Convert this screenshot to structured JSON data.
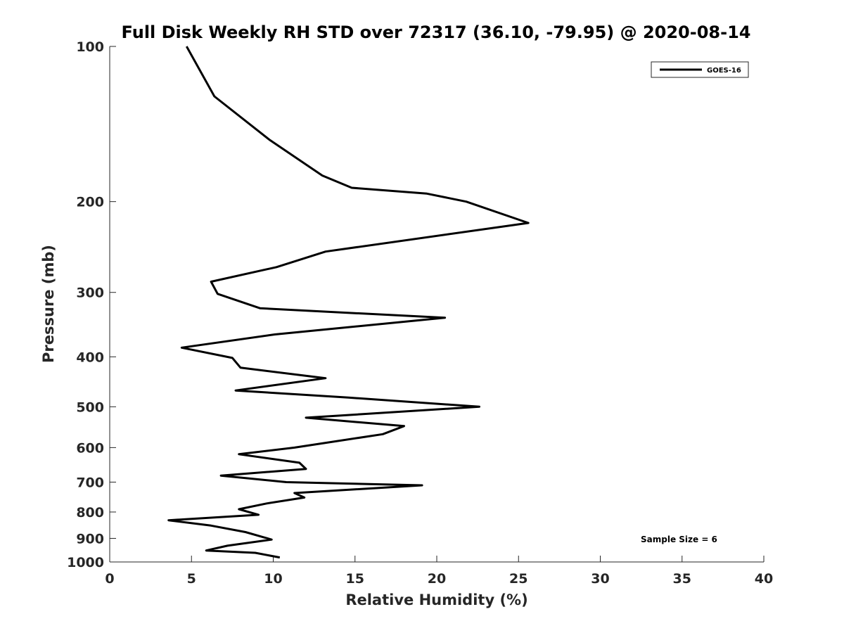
{
  "chart_data": {
    "type": "line",
    "title": "Full Disk Weekly RH STD over 72317 (36.10, -79.95) @ 2020-08-14",
    "xlabel": "Relative Humidity (%)",
    "ylabel": "Pressure (mb)",
    "xlim": [
      0,
      40
    ],
    "ylim": [
      100,
      1000
    ],
    "yscale": "log",
    "y_reversed": true,
    "xticks": [
      0,
      5,
      10,
      15,
      20,
      25,
      30,
      35,
      40
    ],
    "yticks": [
      100,
      200,
      300,
      400,
      500,
      600,
      700,
      800,
      900,
      1000
    ],
    "grid": false,
    "legend": {
      "placement": "top-right",
      "entries": [
        "GOES-16"
      ]
    },
    "annotation": "Sample Size = 6",
    "series": [
      {
        "name": "GOES-16",
        "color": "#000000",
        "points": [
          [
            4.7,
            100
          ],
          [
            6.4,
            125
          ],
          [
            9.8,
            152
          ],
          [
            13.0,
            178
          ],
          [
            14.8,
            188
          ],
          [
            19.4,
            193
          ],
          [
            21.8,
            200
          ],
          [
            25.6,
            220
          ],
          [
            13.2,
            250
          ],
          [
            10.2,
            268
          ],
          [
            6.2,
            286
          ],
          [
            6.6,
            302
          ],
          [
            9.2,
            322
          ],
          [
            20.5,
            336
          ],
          [
            10.1,
            362
          ],
          [
            4.4,
            384
          ],
          [
            7.5,
            402
          ],
          [
            8.0,
            420
          ],
          [
            13.2,
            440
          ],
          [
            7.7,
            465
          ],
          [
            14.6,
            480
          ],
          [
            22.6,
            500
          ],
          [
            12.0,
            525
          ],
          [
            18.0,
            545
          ],
          [
            16.7,
            565
          ],
          [
            11.3,
            600
          ],
          [
            7.9,
            618
          ],
          [
            11.6,
            642
          ],
          [
            12.0,
            660
          ],
          [
            6.8,
            680
          ],
          [
            10.8,
            700
          ],
          [
            19.1,
            710
          ],
          [
            11.3,
            735
          ],
          [
            11.9,
            750
          ],
          [
            9.6,
            770
          ],
          [
            7.9,
            790
          ],
          [
            9.1,
            810
          ],
          [
            3.6,
            830
          ],
          [
            6.2,
            850
          ],
          [
            8.3,
            875
          ],
          [
            9.9,
            905
          ],
          [
            7.2,
            930
          ],
          [
            5.9,
            950
          ],
          [
            8.9,
            960
          ],
          [
            10.4,
            980
          ]
        ]
      }
    ]
  }
}
